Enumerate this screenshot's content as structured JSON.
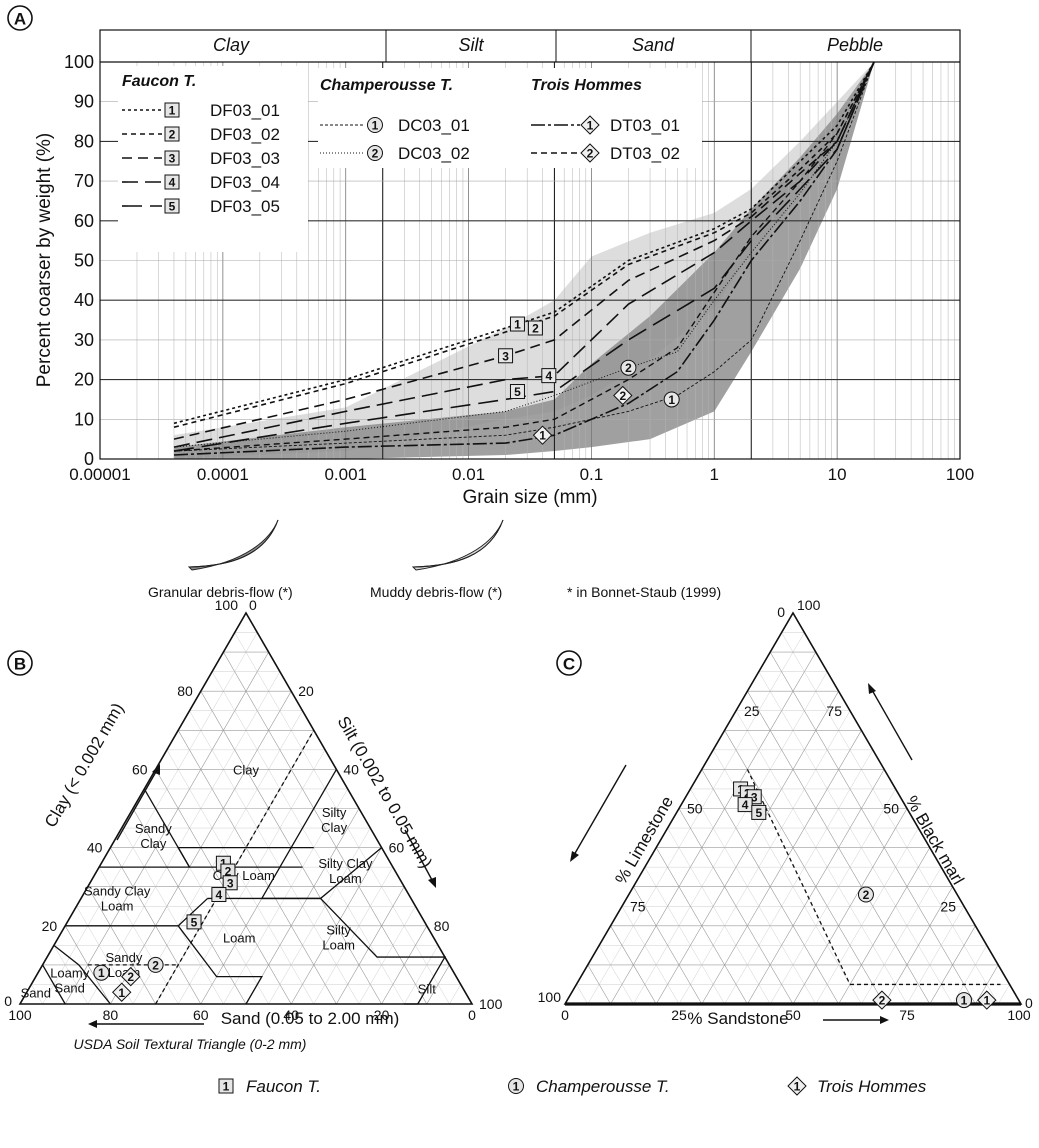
{
  "colors": {
    "granular_fill": "#8f8f8f",
    "muddy_fill": "#d9d9d9",
    "grid": "#9a9a9a",
    "ink": "#111111"
  },
  "panel_a": {
    "letter": "A",
    "zones": [
      "Clay",
      "Silt",
      "Sand",
      "Pebble"
    ],
    "ylabel": "Percent coarser by weight (%)",
    "xlabel": "Grain size (mm)",
    "legend_groups": [
      {
        "title": "Faucon T.",
        "marker": "square",
        "items": [
          {
            "marker_label": "1",
            "name": "DF03_01"
          },
          {
            "marker_label": "2",
            "name": "DF03_02"
          },
          {
            "marker_label": "3",
            "name": "DF03_03"
          },
          {
            "marker_label": "4",
            "name": "DF03_04"
          },
          {
            "marker_label": "5",
            "name": "DF03_05"
          }
        ]
      },
      {
        "title": "Champerousse T.",
        "marker": "circle",
        "items": [
          {
            "marker_label": "1",
            "name": "DC03_01"
          },
          {
            "marker_label": "2",
            "name": "DC03_02"
          }
        ]
      },
      {
        "title": "Trois Hommes",
        "marker": "diamond",
        "items": [
          {
            "marker_label": "1",
            "name": "DT03_01"
          },
          {
            "marker_label": "2",
            "name": "DT03_02"
          }
        ]
      }
    ],
    "bottom_legend": {
      "granular": "Granular debris-flow (*)",
      "muddy": "Muddy debris-flow (*)",
      "note": "* in Bonnet-Staub (1999)"
    }
  },
  "panel_b": {
    "letter": "B",
    "left_axis": "Clay (< 0.002 mm)",
    "right_axis": "Silt (0.002 to 0.05 mm)",
    "bottom_axis": "Sand (0.05 to 2.00 mm)",
    "caption": "USDA Soil Textural Triangle (0-2 mm)",
    "regions": [
      "Clay",
      "Silty Clay",
      "Sandy Clay",
      "Silty Clay Loam",
      "Clay Loam",
      "Sandy Clay Loam",
      "Loam",
      "Silty Loam",
      "Sandy Loam",
      "Loamy Sand",
      "Sand",
      "Silt"
    ],
    "ticks": {
      "left": [
        "0",
        "20",
        "40",
        "60",
        "80",
        "100"
      ],
      "right": [
        "0",
        "20",
        "40",
        "60",
        "80",
        "100"
      ],
      "bottom": [
        "100",
        "80",
        "60",
        "40",
        "20",
        "0"
      ]
    }
  },
  "panel_c": {
    "letter": "C",
    "left_axis": "% Limestone",
    "right_axis": "% Black marl",
    "bottom_axis": "% Sandstone",
    "ticks": {
      "left": [
        "100",
        "75",
        "50",
        "25",
        "0"
      ],
      "right": [
        "0",
        "25",
        "50",
        "75",
        "100"
      ],
      "bottom": [
        "0",
        "25",
        "50",
        "75",
        "100"
      ]
    }
  },
  "footer_legend": [
    {
      "marker": "square",
      "marker_label": "1",
      "name": "Faucon T."
    },
    {
      "marker": "circle",
      "marker_label": "1",
      "name": "Champerousse T."
    },
    {
      "marker": "diamond",
      "marker_label": "1",
      "name": "Trois Hommes"
    }
  ],
  "chart_data": [
    {
      "type": "line",
      "title": "",
      "xlabel": "Grain size (mm)",
      "ylabel": "Percent coarser by weight (%)",
      "x_scale": "log",
      "xlim": [
        1e-05,
        100
      ],
      "ylim": [
        0,
        100
      ],
      "x_ticks": [
        "0.00001",
        "0.0001",
        "0.001",
        "0.01",
        "0.1",
        "1",
        "10",
        "100"
      ],
      "y_ticks": [
        "0",
        "10",
        "20",
        "30",
        "40",
        "50",
        "60",
        "70",
        "80",
        "90",
        "100"
      ],
      "grid": true,
      "legend_position": "top-left",
      "series": [
        {
          "name": "DF03_01",
          "dash": "3,3",
          "width": 1.6,
          "points": [
            [
              4e-05,
              9
            ],
            [
              0.001,
              20
            ],
            [
              0.02,
              33
            ],
            [
              0.05,
              37
            ],
            [
              0.2,
              50
            ],
            [
              1,
              58
            ],
            [
              2,
              63
            ],
            [
              5,
              75
            ],
            [
              10,
              84
            ],
            [
              20,
              100
            ]
          ]
        },
        {
          "name": "DF03_02",
          "dash": "5,4",
          "width": 1.6,
          "points": [
            [
              4e-05,
              8
            ],
            [
              0.001,
              19
            ],
            [
              0.02,
              32
            ],
            [
              0.05,
              36
            ],
            [
              0.2,
              49
            ],
            [
              1,
              57
            ],
            [
              2,
              62
            ],
            [
              5,
              73
            ],
            [
              10,
              82
            ],
            [
              20,
              100
            ]
          ]
        },
        {
          "name": "DF03_03",
          "dash": "10,6",
          "width": 1.6,
          "points": [
            [
              4e-05,
              5
            ],
            [
              0.001,
              15
            ],
            [
              0.02,
              26
            ],
            [
              0.05,
              30
            ],
            [
              0.2,
              45
            ],
            [
              1,
              55
            ],
            [
              2,
              61
            ],
            [
              5,
              72
            ],
            [
              10,
              80
            ],
            [
              20,
              100
            ]
          ]
        },
        {
          "name": "DF03_04",
          "dash": "16,7",
          "width": 1.6,
          "points": [
            [
              4e-05,
              3
            ],
            [
              0.001,
              12
            ],
            [
              0.02,
              20
            ],
            [
              0.05,
              21
            ],
            [
              0.2,
              39
            ],
            [
              1,
              52
            ],
            [
              2,
              60
            ],
            [
              5,
              70
            ],
            [
              10,
              80
            ],
            [
              20,
              100
            ]
          ]
        },
        {
          "name": "DF03_05",
          "dash": "20,8",
          "width": 1.6,
          "points": [
            [
              4e-05,
              2
            ],
            [
              0.001,
              9
            ],
            [
              0.02,
              15
            ],
            [
              0.05,
              17
            ],
            [
              0.2,
              30
            ],
            [
              1,
              43
            ],
            [
              2,
              55
            ],
            [
              5,
              68
            ],
            [
              10,
              78
            ],
            [
              20,
              100
            ]
          ]
        },
        {
          "name": "DC03_01",
          "dash": "3,2",
          "width": 0.9,
          "points": [
            [
              4e-05,
              2
            ],
            [
              0.001,
              4
            ],
            [
              0.02,
              6
            ],
            [
              0.05,
              8
            ],
            [
              0.2,
              12
            ],
            [
              0.5,
              16
            ],
            [
              1,
              22
            ],
            [
              2,
              30
            ],
            [
              5,
              55
            ],
            [
              10,
              75
            ],
            [
              20,
              100
            ]
          ]
        },
        {
          "name": "DC03_02",
          "dash": "1,2",
          "width": 1.0,
          "points": [
            [
              4e-05,
              3
            ],
            [
              0.001,
              7
            ],
            [
              0.02,
              12
            ],
            [
              0.05,
              16
            ],
            [
              0.2,
              23
            ],
            [
              0.5,
              27
            ],
            [
              1,
              40
            ],
            [
              2,
              52
            ],
            [
              5,
              67
            ],
            [
              10,
              80
            ],
            [
              20,
              100
            ]
          ]
        },
        {
          "name": "DT03_01",
          "dash": "14,3,3,3",
          "width": 1.6,
          "points": [
            [
              4e-05,
              1
            ],
            [
              0.001,
              3
            ],
            [
              0.02,
              4
            ],
            [
              0.05,
              6
            ],
            [
              0.2,
              14
            ],
            [
              0.5,
              22
            ],
            [
              1,
              35
            ],
            [
              2,
              50
            ],
            [
              5,
              65
            ],
            [
              10,
              78
            ],
            [
              20,
              100
            ]
          ]
        },
        {
          "name": "DT03_02",
          "dash": "6,4",
          "width": 1.4,
          "points": [
            [
              4e-05,
              2
            ],
            [
              0.001,
              5
            ],
            [
              0.02,
              8
            ],
            [
              0.05,
              10
            ],
            [
              0.2,
              20
            ],
            [
              0.5,
              28
            ],
            [
              1,
              42
            ],
            [
              2,
              56
            ],
            [
              5,
              70
            ],
            [
              10,
              82
            ],
            [
              20,
              100
            ]
          ]
        }
      ],
      "envelopes": [
        {
          "name": "Granular debris-flow",
          "upper": [
            [
              4e-05,
              3
            ],
            [
              0.001,
              8
            ],
            [
              0.02,
              12
            ],
            [
              0.05,
              15
            ],
            [
              0.1,
              24
            ],
            [
              0.3,
              36
            ],
            [
              1,
              52
            ],
            [
              2,
              63
            ],
            [
              5,
              76
            ],
            [
              10,
              87
            ],
            [
              20,
              100
            ]
          ],
          "lower": [
            [
              4e-05,
              0
            ],
            [
              0.001,
              0
            ],
            [
              0.02,
              1
            ],
            [
              0.05,
              2
            ],
            [
              0.1,
              3
            ],
            [
              0.3,
              5
            ],
            [
              1,
              12
            ],
            [
              2,
              27
            ],
            [
              5,
              48
            ],
            [
              10,
              68
            ],
            [
              20,
              100
            ]
          ]
        },
        {
          "name": "Muddy debris-flow",
          "upper": [
            [
              4e-05,
              6
            ],
            [
              0.001,
              13
            ],
            [
              0.02,
              33
            ],
            [
              0.05,
              40
            ],
            [
              0.1,
              51
            ],
            [
              0.3,
              57
            ],
            [
              1,
              62
            ],
            [
              2,
              68
            ],
            [
              5,
              80
            ],
            [
              10,
              90
            ],
            [
              20,
              100
            ]
          ],
          "lower": [
            [
              4e-05,
              0
            ],
            [
              0.001,
              2
            ],
            [
              0.02,
              10
            ],
            [
              0.05,
              12
            ],
            [
              0.1,
              16
            ],
            [
              0.3,
              25
            ],
            [
              1,
              38
            ],
            [
              2,
              52
            ],
            [
              5,
              66
            ],
            [
              10,
              80
            ],
            [
              20,
              100
            ]
          ]
        }
      ]
    },
    {
      "type": "ternary",
      "title": "USDA Soil Textural Triangle (0-2 mm)",
      "axes": [
        "Clay (< 0.002 mm)",
        "Silt (0.002 to 0.05 mm)",
        "Sand (0.05 to 2.00 mm)"
      ],
      "points": [
        {
          "set": "Faucon T.",
          "marker": "square",
          "label": "1",
          "clay": 36,
          "silt": 27,
          "sand": 37
        },
        {
          "set": "Faucon T.",
          "marker": "square",
          "label": "2",
          "clay": 34,
          "silt": 29,
          "sand": 37
        },
        {
          "set": "Faucon T.",
          "marker": "square",
          "label": "3",
          "clay": 31,
          "silt": 31,
          "sand": 38
        },
        {
          "set": "Faucon T.",
          "marker": "square",
          "label": "4",
          "clay": 28,
          "silt": 30,
          "sand": 42
        },
        {
          "set": "Faucon T.",
          "marker": "square",
          "label": "5",
          "clay": 21,
          "silt": 28,
          "sand": 51
        },
        {
          "set": "Champerousse T.",
          "marker": "circle",
          "label": "1",
          "clay": 8,
          "silt": 14,
          "sand": 78
        },
        {
          "set": "Champerousse T.",
          "marker": "circle",
          "label": "2",
          "clay": 10,
          "silt": 25,
          "sand": 65
        },
        {
          "set": "Trois Hommes",
          "marker": "diamond",
          "label": "1",
          "clay": 3,
          "silt": 21,
          "sand": 76
        },
        {
          "set": "Trois Hommes",
          "marker": "diamond",
          "label": "2",
          "clay": 7,
          "silt": 21,
          "sand": 72
        }
      ]
    },
    {
      "type": "ternary",
      "title": "",
      "axes": [
        "% Limestone",
        "% Black marl",
        "% Sandstone"
      ],
      "points": [
        {
          "set": "Faucon T.",
          "marker": "square",
          "label": "1",
          "limestone": 34,
          "marl": 55,
          "sandstone": 11
        },
        {
          "set": "Faucon T.",
          "marker": "square",
          "label": "2",
          "limestone": 33,
          "marl": 54,
          "sandstone": 13
        },
        {
          "set": "Faucon T.",
          "marker": "square",
          "label": "3",
          "limestone": 32,
          "marl": 53,
          "sandstone": 15
        },
        {
          "set": "Faucon T.",
          "marker": "square",
          "label": "4",
          "limestone": 35,
          "marl": 51,
          "sandstone": 14
        },
        {
          "set": "Faucon T.",
          "marker": "square",
          "label": "5",
          "limestone": 33,
          "marl": 49,
          "sandstone": 18
        },
        {
          "set": "Champerousse T.",
          "marker": "circle",
          "label": "2",
          "limestone": 20,
          "marl": 28,
          "sandstone": 52
        },
        {
          "set": "Champerousse T.",
          "marker": "circle",
          "label": "1",
          "limestone": 12,
          "marl": 1,
          "sandstone": 87
        },
        {
          "set": "Trois Hommes",
          "marker": "diamond",
          "label": "1",
          "limestone": 7,
          "marl": 1,
          "sandstone": 92
        },
        {
          "set": "Trois Hommes",
          "marker": "diamond",
          "label": "2",
          "limestone": 30,
          "marl": 1,
          "sandstone": 69
        }
      ]
    }
  ]
}
